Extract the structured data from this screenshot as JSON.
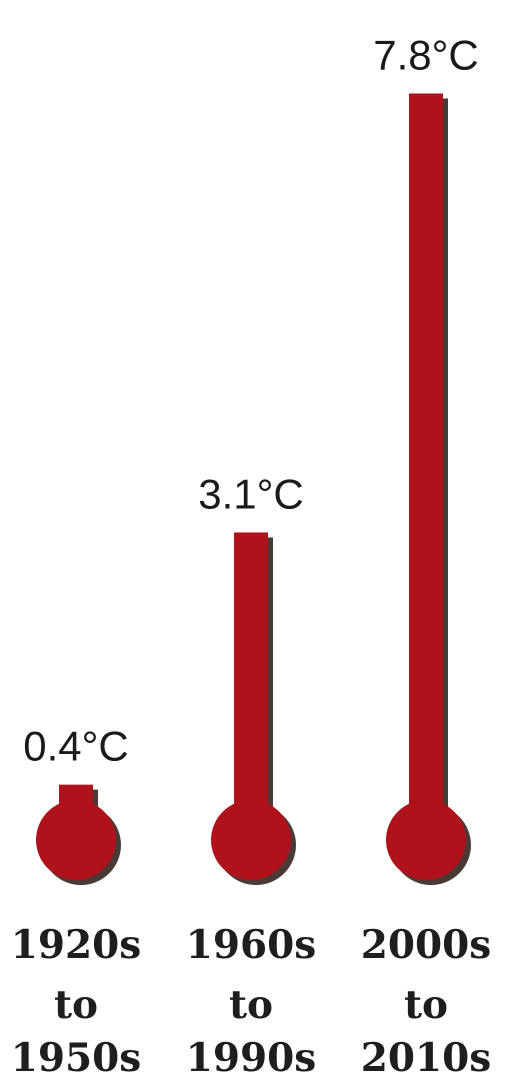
{
  "chart_data": {
    "type": "bar",
    "style": "thermometer",
    "categories": [
      [
        "1920s",
        "to",
        "1950s"
      ],
      [
        "1960s",
        "to",
        "1990s"
      ],
      [
        "2000s",
        "to",
        "2010s"
      ]
    ],
    "values": [
      0.4,
      3.1,
      7.8
    ],
    "value_labels": [
      "0.4°C",
      "3.1°C",
      "7.8°C"
    ],
    "unit": "°C",
    "title": "",
    "xlabel": "",
    "ylabel": "",
    "ylim": [
      0,
      7.8
    ],
    "grid": false,
    "legend": "none",
    "colors": {
      "fill": "#b0121b",
      "shadow": "#4a3a36",
      "text": "#1a1a1a"
    }
  }
}
